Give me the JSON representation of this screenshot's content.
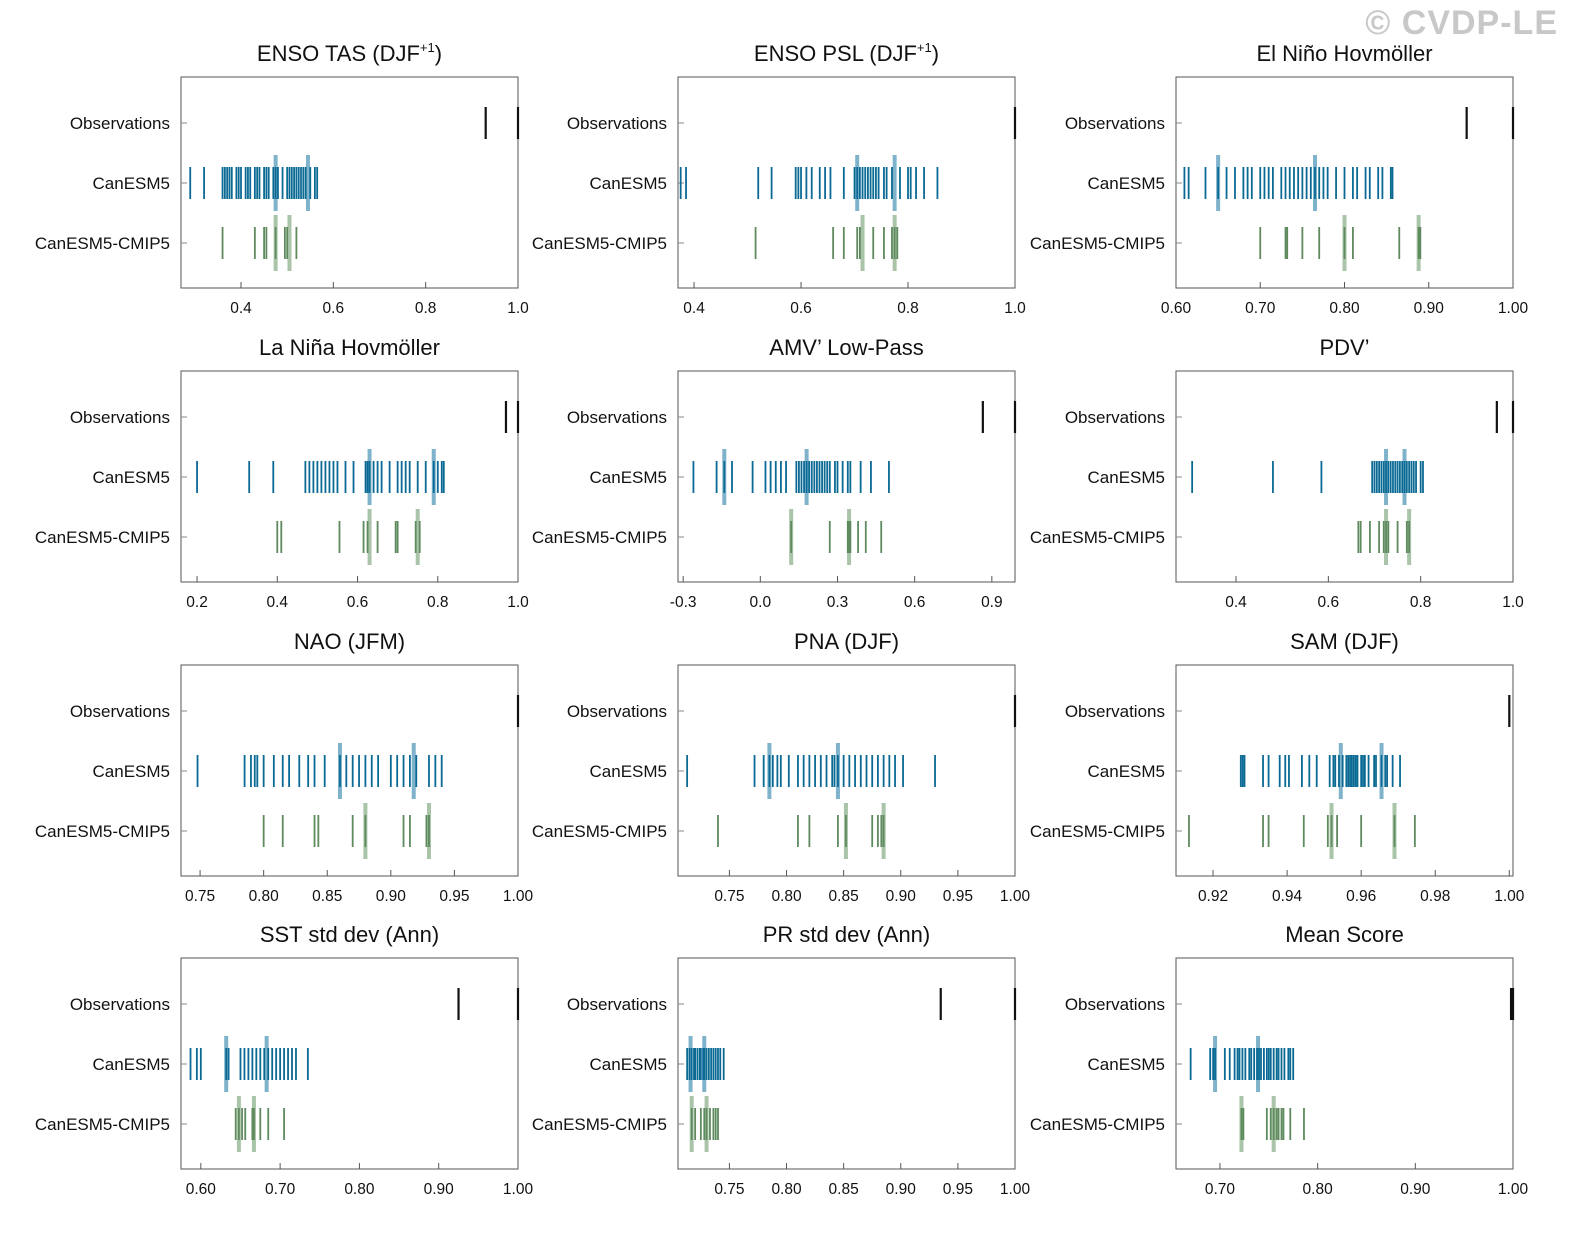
{
  "watermark": "© CVDP-LE",
  "colors": {
    "observations": "#111111",
    "model": "#0a6a94",
    "model_mean": "#7fb3cc",
    "cmip5": "#5e8a5e",
    "cmip5_mean": "#a9c4a8",
    "frame": "#555555"
  },
  "row_labels": [
    "Observations",
    "CanESM5",
    "CanESM5-CMIP5"
  ],
  "chart_data": [
    {
      "type": "scatter",
      "title": "ENSO TAS (DJF",
      "title_sup": "+1",
      "title_end": ")",
      "xlim": [
        0.27,
        1.0
      ],
      "ticks": [
        0.4,
        0.6,
        0.8,
        1.0
      ],
      "tick_labels": [
        "0.4",
        "0.6",
        "0.8",
        "1.0"
      ],
      "observations": [
        0.93,
        1.0
      ],
      "canesm5": [
        0.29,
        0.32,
        0.36,
        0.365,
        0.37,
        0.375,
        0.38,
        0.39,
        0.395,
        0.4,
        0.41,
        0.415,
        0.42,
        0.43,
        0.435,
        0.44,
        0.45,
        0.455,
        0.46,
        0.47,
        0.475,
        0.48,
        0.49,
        0.5,
        0.505,
        0.51,
        0.515,
        0.52,
        0.525,
        0.53,
        0.535,
        0.54,
        0.55,
        0.56,
        0.565
      ],
      "canesm5_mean": 0.475,
      "canesm5_mean2": 0.545,
      "cmip5": [
        0.36,
        0.43,
        0.45,
        0.455,
        0.475,
        0.495,
        0.5,
        0.52
      ],
      "cmip5_mean": 0.475,
      "cmip5_mean2": 0.505
    },
    {
      "type": "scatter",
      "title": "ENSO PSL (DJF",
      "title_sup": "+1",
      "title_end": ")",
      "xlim": [
        0.37,
        1.0
      ],
      "ticks": [
        0.4,
        0.6,
        0.8,
        1.0
      ],
      "tick_labels": [
        "0.4",
        "0.6",
        "0.8",
        "1.0"
      ],
      "observations": [
        1.0
      ],
      "canesm5": [
        0.375,
        0.385,
        0.52,
        0.545,
        0.59,
        0.595,
        0.6,
        0.61,
        0.62,
        0.635,
        0.645,
        0.655,
        0.68,
        0.7,
        0.705,
        0.71,
        0.715,
        0.72,
        0.725,
        0.73,
        0.735,
        0.74,
        0.745,
        0.755,
        0.76,
        0.77,
        0.785,
        0.8,
        0.805,
        0.815,
        0.83,
        0.855
      ],
      "canesm5_mean": 0.705,
      "canesm5_mean2": 0.775,
      "cmip5": [
        0.515,
        0.66,
        0.68,
        0.705,
        0.71,
        0.735,
        0.755,
        0.77,
        0.775,
        0.78
      ],
      "cmip5_mean": 0.715,
      "cmip5_mean2": 0.775
    },
    {
      "type": "scatter",
      "title": "El Niño Hovmöller",
      "title_sup": "",
      "title_end": "",
      "xlim": [
        0.6,
        1.0
      ],
      "ticks": [
        0.6,
        0.7,
        0.8,
        0.9,
        1.0
      ],
      "tick_labels": [
        "0.60",
        "0.70",
        "0.80",
        "0.90",
        "1.00"
      ],
      "observations": [
        0.945,
        1.0
      ],
      "canesm5": [
        0.61,
        0.615,
        0.635,
        0.65,
        0.66,
        0.67,
        0.68,
        0.685,
        0.69,
        0.7,
        0.705,
        0.71,
        0.715,
        0.725,
        0.73,
        0.735,
        0.74,
        0.745,
        0.75,
        0.755,
        0.76,
        0.765,
        0.77,
        0.775,
        0.78,
        0.79,
        0.8,
        0.81,
        0.815,
        0.825,
        0.83,
        0.84,
        0.845,
        0.855,
        0.857
      ],
      "canesm5_mean": 0.765,
      "canesm5_mean2": 0.65,
      "cmip5": [
        0.7,
        0.73,
        0.732,
        0.75,
        0.77,
        0.8,
        0.81,
        0.865,
        0.888,
        0.89
      ],
      "cmip5_mean": 0.8,
      "cmip5_mean2": 0.888
    },
    {
      "type": "scatter",
      "title": "La Niña Hovmöller",
      "title_sup": "",
      "title_end": "",
      "xlim": [
        0.16,
        1.0
      ],
      "ticks": [
        0.2,
        0.4,
        0.6,
        0.8,
        1.0
      ],
      "tick_labels": [
        "0.2",
        "0.4",
        "0.6",
        "0.8",
        "1.0"
      ],
      "observations": [
        0.97,
        1.0
      ],
      "canesm5": [
        0.2,
        0.33,
        0.39,
        0.47,
        0.48,
        0.49,
        0.5,
        0.51,
        0.52,
        0.53,
        0.54,
        0.55,
        0.57,
        0.59,
        0.62,
        0.625,
        0.63,
        0.64,
        0.65,
        0.66,
        0.68,
        0.7,
        0.71,
        0.72,
        0.73,
        0.75,
        0.77,
        0.79,
        0.8,
        0.81,
        0.815
      ],
      "canesm5_mean": 0.63,
      "canesm5_mean2": 0.79,
      "cmip5": [
        0.4,
        0.41,
        0.555,
        0.615,
        0.625,
        0.65,
        0.695,
        0.7,
        0.745,
        0.755
      ],
      "cmip5_mean": 0.63,
      "cmip5_mean2": 0.75
    },
    {
      "type": "scatter",
      "title": "AMV’ Low-Pass",
      "title_sup": "",
      "title_end": "",
      "xlim": [
        -0.32,
        0.99
      ],
      "ticks": [
        -0.3,
        0.0,
        0.3,
        0.6,
        0.9
      ],
      "tick_labels": [
        "-0.3",
        "0.0",
        "0.3",
        "0.6",
        "0.9"
      ],
      "observations": [
        0.865,
        0.99
      ],
      "canesm5": [
        -0.26,
        -0.17,
        -0.14,
        -0.11,
        -0.03,
        0.02,
        0.04,
        0.06,
        0.08,
        0.1,
        0.14,
        0.15,
        0.16,
        0.17,
        0.18,
        0.19,
        0.2,
        0.21,
        0.22,
        0.23,
        0.24,
        0.25,
        0.26,
        0.27,
        0.29,
        0.3,
        0.32,
        0.34,
        0.35,
        0.39,
        0.43,
        0.5
      ],
      "canesm5_mean": 0.18,
      "canesm5_mean2": -0.14,
      "cmip5": [
        0.12,
        0.27,
        0.34,
        0.345,
        0.35,
        0.38,
        0.41,
        0.47
      ],
      "cmip5_mean": 0.345,
      "cmip5_mean2": 0.12
    },
    {
      "type": "scatter",
      "title": "PDV’",
      "title_sup": "",
      "title_end": "",
      "xlim": [
        0.27,
        1.0
      ],
      "ticks": [
        0.4,
        0.6,
        0.8,
        1.0
      ],
      "tick_labels": [
        "0.4",
        "0.6",
        "0.8",
        "1.0"
      ],
      "observations": [
        0.965,
        1.0
      ],
      "canesm5": [
        0.305,
        0.48,
        0.585,
        0.695,
        0.7,
        0.705,
        0.71,
        0.715,
        0.72,
        0.725,
        0.73,
        0.735,
        0.74,
        0.745,
        0.75,
        0.755,
        0.76,
        0.765,
        0.77,
        0.775,
        0.78,
        0.785,
        0.79,
        0.8,
        0.805
      ],
      "canesm5_mean": 0.725,
      "canesm5_mean2": 0.765,
      "cmip5": [
        0.665,
        0.67,
        0.69,
        0.71,
        0.72,
        0.725,
        0.73,
        0.75,
        0.77,
        0.775
      ],
      "cmip5_mean": 0.725,
      "cmip5_mean2": 0.775
    },
    {
      "type": "scatter",
      "title": "NAO (JFM)",
      "title_sup": "",
      "title_end": "",
      "xlim": [
        0.735,
        1.0
      ],
      "ticks": [
        0.75,
        0.8,
        0.85,
        0.9,
        0.95,
        1.0
      ],
      "tick_labels": [
        "0.75",
        "0.80",
        "0.85",
        "0.90",
        "0.95",
        "1.00"
      ],
      "observations": [
        1.0
      ],
      "canesm5": [
        0.748,
        0.785,
        0.79,
        0.793,
        0.795,
        0.8,
        0.808,
        0.815,
        0.82,
        0.828,
        0.835,
        0.84,
        0.848,
        0.86,
        0.865,
        0.87,
        0.875,
        0.88,
        0.885,
        0.89,
        0.9,
        0.905,
        0.91,
        0.915,
        0.92,
        0.93,
        0.935,
        0.94
      ],
      "canesm5_mean": 0.86,
      "canesm5_mean2": 0.918,
      "cmip5": [
        0.8,
        0.815,
        0.84,
        0.843,
        0.87,
        0.88,
        0.91,
        0.915,
        0.928,
        0.93
      ],
      "cmip5_mean": 0.88,
      "cmip5_mean2": 0.93
    },
    {
      "type": "scatter",
      "title": "PNA (DJF)",
      "title_sup": "",
      "title_end": "",
      "xlim": [
        0.705,
        1.0
      ],
      "ticks": [
        0.75,
        0.8,
        0.85,
        0.9,
        0.95,
        1.0
      ],
      "tick_labels": [
        "0.75",
        "0.80",
        "0.85",
        "0.90",
        "0.95",
        "1.00"
      ],
      "observations": [
        1.0
      ],
      "canesm5": [
        0.713,
        0.772,
        0.78,
        0.785,
        0.788,
        0.792,
        0.795,
        0.802,
        0.81,
        0.815,
        0.82,
        0.825,
        0.83,
        0.835,
        0.84,
        0.842,
        0.845,
        0.85,
        0.855,
        0.86,
        0.865,
        0.87,
        0.875,
        0.88,
        0.885,
        0.89,
        0.895,
        0.902,
        0.93
      ],
      "canesm5_mean": 0.845,
      "canesm5_mean2": 0.785,
      "cmip5": [
        0.74,
        0.81,
        0.82,
        0.845,
        0.852,
        0.875,
        0.88,
        0.883,
        0.885
      ],
      "cmip5_mean": 0.852,
      "cmip5_mean2": 0.885
    },
    {
      "type": "scatter",
      "title": "SAM (DJF)",
      "title_sup": "",
      "title_end": "",
      "xlim": [
        0.91,
        1.001
      ],
      "ticks": [
        0.92,
        0.94,
        0.96,
        0.98,
        1.0
      ],
      "tick_labels": [
        "0.92",
        "0.94",
        "0.96",
        "0.98",
        "1.00"
      ],
      "observations": [
        1.0
      ],
      "canesm5": [
        0.9275,
        0.928,
        0.9285,
        0.9335,
        0.935,
        0.938,
        0.9395,
        0.9405,
        0.944,
        0.946,
        0.948,
        0.9515,
        0.9525,
        0.953,
        0.954,
        0.955,
        0.956,
        0.9565,
        0.957,
        0.9575,
        0.958,
        0.9585,
        0.959,
        0.96,
        0.9605,
        0.961,
        0.962,
        0.9635,
        0.964,
        0.9655,
        0.9665,
        0.967,
        0.9685,
        0.9705
      ],
      "canesm5_mean": 0.9545,
      "canesm5_mean2": 0.9655,
      "cmip5": [
        0.9135,
        0.9335,
        0.935,
        0.9445,
        0.951,
        0.952,
        0.9535,
        0.96,
        0.969,
        0.9745
      ],
      "cmip5_mean": 0.952,
      "cmip5_mean2": 0.969
    },
    {
      "type": "scatter",
      "title": "SST std dev (Ann)",
      "title_sup": "",
      "title_end": "",
      "xlim": [
        0.575,
        1.0
      ],
      "ticks": [
        0.6,
        0.7,
        0.8,
        0.9,
        1.0
      ],
      "tick_labels": [
        "0.60",
        "0.70",
        "0.80",
        "0.90",
        "1.00"
      ],
      "observations": [
        0.925,
        1.0
      ],
      "canesm5": [
        0.587,
        0.595,
        0.6,
        0.632,
        0.635,
        0.65,
        0.655,
        0.66,
        0.665,
        0.67,
        0.675,
        0.68,
        0.685,
        0.69,
        0.695,
        0.7,
        0.705,
        0.71,
        0.715,
        0.72,
        0.735
      ],
      "canesm5_mean": 0.683,
      "canesm5_mean2": 0.632,
      "cmip5": [
        0.644,
        0.648,
        0.652,
        0.656,
        0.665,
        0.667,
        0.675,
        0.685,
        0.705
      ],
      "cmip5_mean": 0.667,
      "cmip5_mean2": 0.648
    },
    {
      "type": "scatter",
      "title": "PR std dev (Ann)",
      "title_sup": "",
      "title_end": "",
      "xlim": [
        0.705,
        1.0
      ],
      "ticks": [
        0.75,
        0.8,
        0.85,
        0.9,
        0.95,
        1.0
      ],
      "tick_labels": [
        "0.75",
        "0.80",
        "0.85",
        "0.90",
        "0.95",
        "1.00"
      ],
      "observations": [
        0.935,
        1.0
      ],
      "canesm5": [
        0.713,
        0.715,
        0.717,
        0.719,
        0.72,
        0.722,
        0.724,
        0.725,
        0.727,
        0.728,
        0.73,
        0.732,
        0.734,
        0.736,
        0.738,
        0.74,
        0.742,
        0.745
      ],
      "canesm5_mean": 0.728,
      "canesm5_mean2": 0.716,
      "cmip5": [
        0.717,
        0.72,
        0.725,
        0.728,
        0.73,
        0.733,
        0.736,
        0.738,
        0.74
      ],
      "cmip5_mean": 0.73,
      "cmip5_mean2": 0.717
    },
    {
      "type": "scatter",
      "title": "Mean Score",
      "title_sup": "",
      "title_end": "",
      "xlim": [
        0.655,
        1.0
      ],
      "ticks": [
        0.7,
        0.8,
        0.9,
        1.0
      ],
      "tick_labels": [
        "0.70",
        "0.80",
        "0.90",
        "1.00"
      ],
      "observations": [
        0.998,
        1.0
      ],
      "canesm5": [
        0.67,
        0.69,
        0.693,
        0.695,
        0.705,
        0.71,
        0.715,
        0.718,
        0.72,
        0.723,
        0.726,
        0.73,
        0.732,
        0.735,
        0.738,
        0.74,
        0.742,
        0.745,
        0.748,
        0.75,
        0.752,
        0.755,
        0.758,
        0.76,
        0.763,
        0.766,
        0.77,
        0.772,
        0.775
      ],
      "canesm5_mean": 0.739,
      "canesm5_mean2": 0.695,
      "cmip5": [
        0.722,
        0.724,
        0.748,
        0.752,
        0.755,
        0.758,
        0.76,
        0.763,
        0.765,
        0.772,
        0.786
      ],
      "cmip5_mean": 0.755,
      "cmip5_mean2": 0.722
    }
  ]
}
